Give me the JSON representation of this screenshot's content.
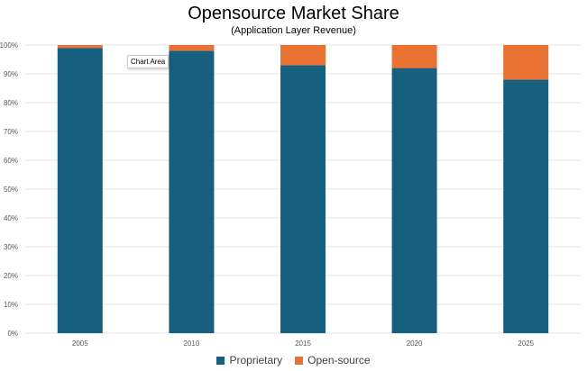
{
  "chart_data": {
    "type": "bar",
    "stacked": true,
    "title": "Opensource Market Share",
    "subtitle": "(Application Layer Revenue)",
    "categories": [
      "2005",
      "2010",
      "2015",
      "2020",
      "2025"
    ],
    "series": [
      {
        "name": "Proprietary",
        "color": "#175F7F",
        "values": [
          99,
          98,
          93,
          92,
          88
        ]
      },
      {
        "name": "Open-source",
        "color": "#E97132",
        "values": [
          1,
          2,
          7,
          8,
          12
        ]
      }
    ],
    "ylim": [
      0,
      100
    ],
    "yticks": [
      "0%",
      "10%",
      "20%",
      "30%",
      "40%",
      "50%",
      "60%",
      "70%",
      "80%",
      "90%",
      "100%"
    ],
    "grid": true,
    "legend_position": "bottom"
  },
  "tooltip": "Chart Area"
}
